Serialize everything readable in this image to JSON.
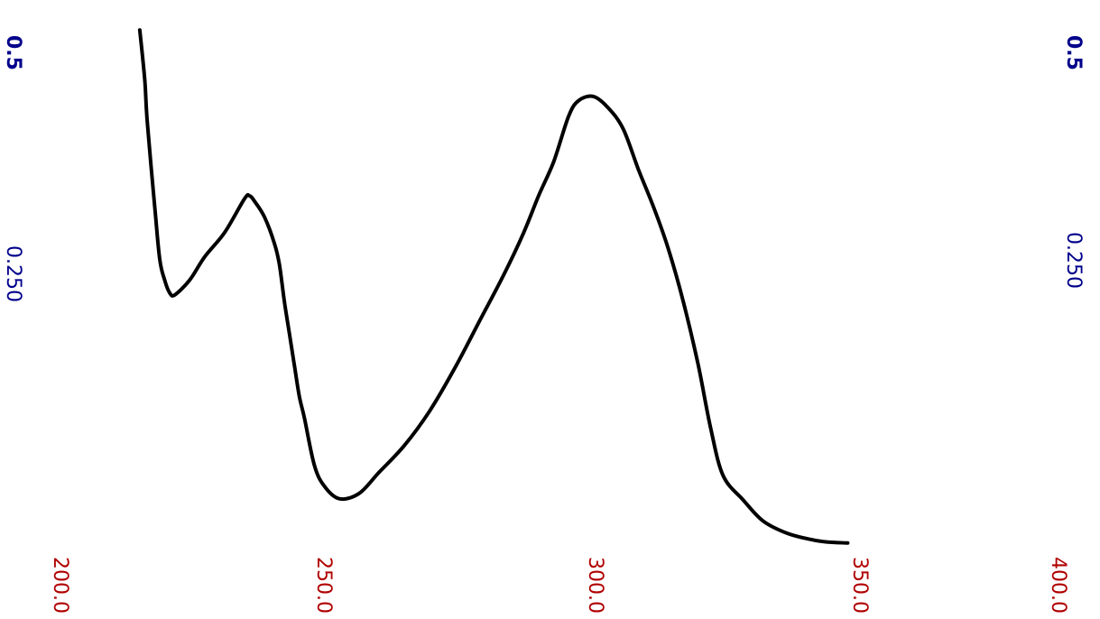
{
  "chart_data": {
    "type": "line",
    "title": "",
    "xlabel": "",
    "ylabel": "",
    "xlim": [
      200.0,
      400.0
    ],
    "ylim": [
      0.0,
      0.5
    ],
    "grid": false,
    "x_ticks": [
      {
        "value": 200,
        "label": "200.0"
      },
      {
        "value": 250,
        "label": "250.0"
      },
      {
        "value": 300,
        "label": "300.0"
      },
      {
        "value": 350,
        "label": "350.0"
      },
      {
        "value": 400,
        "label": "400.0"
      }
    ],
    "y_ticks_left": [
      {
        "value": 0.5,
        "label": "0.5"
      },
      {
        "value": 0.25,
        "label": "0.250"
      }
    ],
    "y_ticks_right": [
      {
        "value": 0.5,
        "label": "0.5"
      },
      {
        "value": 0.25,
        "label": "0.250"
      }
    ],
    "colors": {
      "curve": "#000000",
      "y_ticks": "#00008B",
      "x_ticks": "#B00000"
    },
    "series": [
      {
        "x": [
          215.0,
          216.0,
          216.5,
          218.0,
          219.0,
          220.0,
          221.0,
          222.0,
          225.0,
          228.0,
          232.0,
          236.0,
          237.0,
          238.0,
          240.0,
          242.0,
          243.0,
          244.0,
          245.0,
          246.0,
          247.0,
          248.0,
          250.0,
          252.0,
          255.0,
          259.0,
          263.0,
          268.0,
          273.0,
          278.0,
          283.0,
          288.0,
          292.0,
          295.0,
          298.0,
          301.0,
          303.0,
          306.0,
          309.0,
          312.0,
          315.0,
          318.0,
          321.0,
          324.0,
          327.0,
          329.5,
          332.0,
          336.0,
          340.0,
          345.0,
          350.0,
          353.0,
          357.0
        ],
        "y": [
          0.487,
          0.44,
          0.4,
          0.32,
          0.27,
          0.25,
          0.238,
          0.236,
          0.25,
          0.272,
          0.295,
          0.327,
          0.33,
          0.325,
          0.31,
          0.285,
          0.265,
          0.23,
          0.2,
          0.17,
          0.14,
          0.12,
          0.075,
          0.055,
          0.043,
          0.048,
          0.068,
          0.093,
          0.125,
          0.165,
          0.21,
          0.255,
          0.295,
          0.33,
          0.362,
          0.405,
          0.42,
          0.424,
          0.413,
          0.393,
          0.355,
          0.32,
          0.28,
          0.23,
          0.17,
          0.11,
          0.065,
          0.042,
          0.022,
          0.01,
          0.004,
          0.002,
          0.001
        ]
      }
    ]
  }
}
